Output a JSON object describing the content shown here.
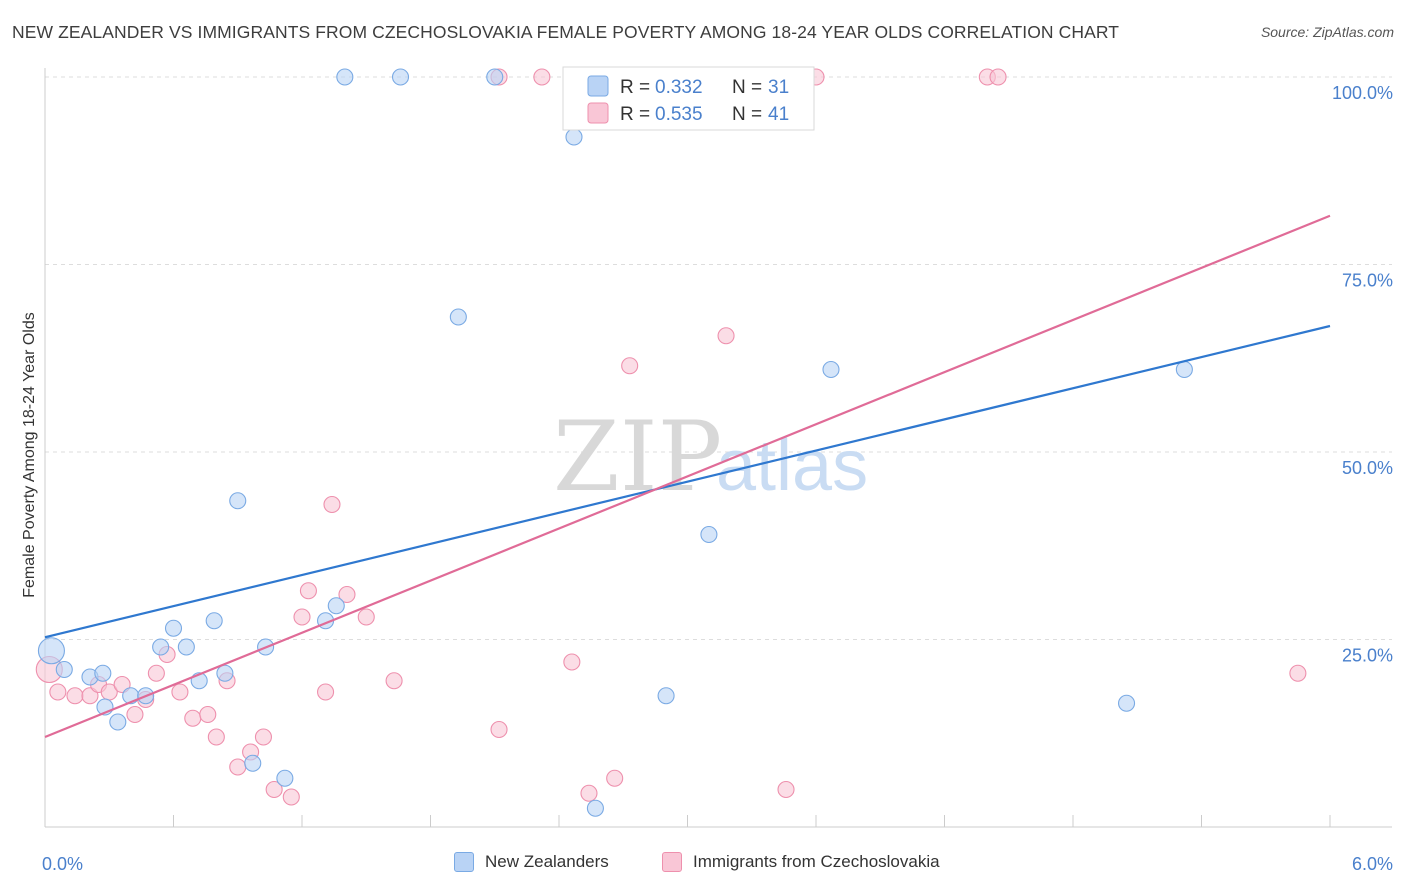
{
  "title": "NEW ZEALANDER VS IMMIGRANTS FROM CZECHOSLOVAKIA FEMALE POVERTY AMONG 18-24 YEAR OLDS CORRELATION CHART",
  "source": "Source: ZipAtlas.com",
  "watermark": {
    "zip": "ZIP",
    "atlas": "atlas"
  },
  "colors": {
    "blue_fill": "#b9d3f5",
    "blue_stroke": "#7aaae4",
    "blue_line": "#2f78cf",
    "pink_fill": "#f9c6d6",
    "pink_stroke": "#ee90ad",
    "pink_line": "#e06b97",
    "tick_label": "#4a80cc",
    "grid": "#dddddd"
  },
  "legend_box": {
    "rows": [
      {
        "r_label": "R = ",
        "r_value": "0.332",
        "n_label": "N = ",
        "n_value": "31"
      },
      {
        "r_label": "R = ",
        "r_value": "0.535",
        "n_label": "N = ",
        "n_value": "41"
      }
    ]
  },
  "chart_data": {
    "type": "scatter",
    "title": "NEW ZEALANDER VS IMMIGRANTS FROM CZECHOSLOVAKIA FEMALE POVERTY AMONG 18-24 YEAR OLDS CORRELATION CHART",
    "xlabel": "",
    "ylabel": "Female Poverty Among 18-24 Year Olds",
    "xlim": [
      0,
      6
    ],
    "ylim": [
      0,
      102
    ],
    "x_tick_labels": [
      "0.0%",
      "6.0%"
    ],
    "y_ticks": [
      25,
      50,
      75,
      100
    ],
    "y_tick_labels": [
      "25.0%",
      "50.0%",
      "75.0%",
      "100.0%"
    ],
    "grid": true,
    "legend_position": "bottom",
    "series": [
      {
        "name": "New Zealanders",
        "color": "blue",
        "R": 0.332,
        "N": 31,
        "trend": {
          "x": [
            0,
            6
          ],
          "y": [
            25.3,
            66.8
          ]
        },
        "points": [
          [
            0.03,
            23.5
          ],
          [
            0.09,
            21.0
          ],
          [
            0.21,
            20.0
          ],
          [
            0.27,
            20.5
          ],
          [
            0.28,
            16.0
          ],
          [
            0.34,
            14.0
          ],
          [
            0.4,
            17.5
          ],
          [
            0.47,
            17.5
          ],
          [
            0.54,
            24.0
          ],
          [
            0.6,
            26.5
          ],
          [
            0.66,
            24.0
          ],
          [
            0.72,
            19.5
          ],
          [
            0.79,
            27.5
          ],
          [
            0.84,
            20.5
          ],
          [
            0.9,
            43.5
          ],
          [
            0.97,
            8.5
          ],
          [
            1.03,
            24.0
          ],
          [
            1.12,
            6.5
          ],
          [
            1.31,
            27.5
          ],
          [
            1.36,
            29.5
          ],
          [
            1.4,
            100.0
          ],
          [
            1.66,
            100.0
          ],
          [
            2.1,
            100.0
          ],
          [
            1.93,
            68.0
          ],
          [
            2.47,
            92.0
          ],
          [
            2.57,
            2.5
          ],
          [
            2.9,
            17.5
          ],
          [
            3.1,
            39.0
          ],
          [
            3.67,
            61.0
          ],
          [
            5.05,
            16.5
          ],
          [
            5.32,
            61.0
          ]
        ]
      },
      {
        "name": "Immigrants from Czechoslovakia",
        "color": "pink",
        "R": 0.535,
        "N": 41,
        "trend": {
          "x": [
            0,
            6
          ],
          "y": [
            12.0,
            81.5
          ]
        },
        "points": [
          [
            0.02,
            21.0
          ],
          [
            0.06,
            18.0
          ],
          [
            0.14,
            17.5
          ],
          [
            0.21,
            17.5
          ],
          [
            0.25,
            19.0
          ],
          [
            0.3,
            18.0
          ],
          [
            0.36,
            19.0
          ],
          [
            0.42,
            15.0
          ],
          [
            0.47,
            17.0
          ],
          [
            0.52,
            20.5
          ],
          [
            0.57,
            23.0
          ],
          [
            0.63,
            18.0
          ],
          [
            0.69,
            14.5
          ],
          [
            0.76,
            15.0
          ],
          [
            0.8,
            12.0
          ],
          [
            0.85,
            19.5
          ],
          [
            0.9,
            8.0
          ],
          [
            0.96,
            10.0
          ],
          [
            1.02,
            12.0
          ],
          [
            1.07,
            5.0
          ],
          [
            1.15,
            4.0
          ],
          [
            1.2,
            28.0
          ],
          [
            1.23,
            31.5
          ],
          [
            1.31,
            18.0
          ],
          [
            1.34,
            43.0
          ],
          [
            1.41,
            31.0
          ],
          [
            1.5,
            28.0
          ],
          [
            1.63,
            19.5
          ],
          [
            2.12,
            100.0
          ],
          [
            2.32,
            100.0
          ],
          [
            2.12,
            13.0
          ],
          [
            2.46,
            22.0
          ],
          [
            2.54,
            4.5
          ],
          [
            2.66,
            6.5
          ],
          [
            2.73,
            61.5
          ],
          [
            3.18,
            65.5
          ],
          [
            3.6,
            100.0
          ],
          [
            3.46,
            5.0
          ],
          [
            4.4,
            100.0
          ],
          [
            4.45,
            100.0
          ],
          [
            5.85,
            20.5
          ]
        ]
      }
    ]
  }
}
